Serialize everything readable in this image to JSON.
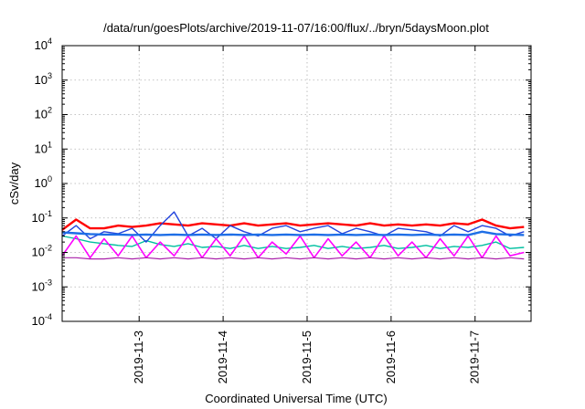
{
  "chart_data": {
    "type": "line",
    "title": "/data/run/goesPlots/archive/2019-11-07/16:00/flux/../bryn/5daysMoon.plot",
    "xlabel": "Coordinated Universal Time (UTC)",
    "ylabel": "cSv/day",
    "yscale": "log",
    "ylim": [
      0.0001,
      10000
    ],
    "xlim": [
      "2019-11-02T02:00",
      "2019-11-07T16:00"
    ],
    "grid": true,
    "x_ticks": [
      {
        "value": "2019-11-03",
        "label": "2019-11-3"
      },
      {
        "value": "2019-11-04",
        "label": "2019-11-4"
      },
      {
        "value": "2019-11-05",
        "label": "2019-11-5"
      },
      {
        "value": "2019-11-06",
        "label": "2019-11-6"
      },
      {
        "value": "2019-11-07",
        "label": "2019-11-7"
      }
    ],
    "y_ticks": [
      {
        "value": 0.0001,
        "base": "10",
        "exp": "-4"
      },
      {
        "value": 0.001,
        "base": "10",
        "exp": "-3"
      },
      {
        "value": 0.01,
        "base": "10",
        "exp": "-2"
      },
      {
        "value": 0.1,
        "base": "10",
        "exp": "-1"
      },
      {
        "value": 1,
        "base": "10",
        "exp": "0"
      },
      {
        "value": 10,
        "base": "10",
        "exp": "1"
      },
      {
        "value": 100,
        "base": "10",
        "exp": "2"
      },
      {
        "value": 1000,
        "base": "10",
        "exp": "3"
      },
      {
        "value": 10000,
        "base": "10",
        "exp": "4"
      }
    ],
    "x": [
      "2019-11-02T02:00",
      "2019-11-02T06:00",
      "2019-11-02T10:00",
      "2019-11-02T14:00",
      "2019-11-02T18:00",
      "2019-11-02T22:00",
      "2019-11-03T02:00",
      "2019-11-03T06:00",
      "2019-11-03T10:00",
      "2019-11-03T14:00",
      "2019-11-03T18:00",
      "2019-11-03T22:00",
      "2019-11-04T02:00",
      "2019-11-04T06:00",
      "2019-11-04T10:00",
      "2019-11-04T14:00",
      "2019-11-04T18:00",
      "2019-11-04T22:00",
      "2019-11-05T02:00",
      "2019-11-05T06:00",
      "2019-11-05T10:00",
      "2019-11-05T14:00",
      "2019-11-05T18:00",
      "2019-11-05T22:00",
      "2019-11-06T02:00",
      "2019-11-06T06:00",
      "2019-11-06T10:00",
      "2019-11-06T14:00",
      "2019-11-06T18:00",
      "2019-11-06T22:00",
      "2019-11-07T02:00",
      "2019-11-07T06:00",
      "2019-11-07T10:00",
      "2019-11-07T14:00"
    ],
    "series": [
      {
        "color": "#ff0000",
        "width": 2.4,
        "values": [
          0.045,
          0.09,
          0.05,
          0.05,
          0.06,
          0.055,
          0.06,
          0.07,
          0.065,
          0.06,
          0.07,
          0.065,
          0.06,
          0.07,
          0.06,
          0.065,
          0.07,
          0.06,
          0.065,
          0.07,
          0.065,
          0.06,
          0.07,
          0.06,
          0.065,
          0.06,
          0.065,
          0.06,
          0.07,
          0.065,
          0.09,
          0.06,
          0.05,
          0.055
        ]
      },
      {
        "color": "#00c0a0",
        "width": 1.4,
        "values": [
          0.03,
          0.025,
          0.02,
          0.018,
          0.016,
          0.015,
          0.022,
          0.017,
          0.015,
          0.018,
          0.014,
          0.015,
          0.013,
          0.016,
          0.013,
          0.015,
          0.013,
          0.014,
          0.016,
          0.013,
          0.015,
          0.013,
          0.014,
          0.016,
          0.013,
          0.014,
          0.016,
          0.013,
          0.015,
          0.014,
          0.016,
          0.02,
          0.013,
          0.014
        ]
      },
      {
        "color": "#2244dd",
        "width": 1.4,
        "values": [
          0.03,
          0.06,
          0.025,
          0.04,
          0.035,
          0.05,
          0.02,
          0.06,
          0.15,
          0.03,
          0.05,
          0.025,
          0.06,
          0.04,
          0.03,
          0.05,
          0.06,
          0.04,
          0.05,
          0.06,
          0.035,
          0.05,
          0.04,
          0.03,
          0.05,
          0.045,
          0.04,
          0.03,
          0.06,
          0.04,
          0.06,
          0.05,
          0.03,
          0.04
        ]
      },
      {
        "color": "#ff00ff",
        "width": 1.6,
        "values": [
          0.008,
          0.03,
          0.007,
          0.025,
          0.008,
          0.03,
          0.007,
          0.02,
          0.008,
          0.03,
          0.007,
          0.025,
          0.008,
          0.03,
          0.007,
          0.02,
          0.009,
          0.03,
          0.007,
          0.025,
          0.008,
          0.02,
          0.007,
          0.03,
          0.008,
          0.02,
          0.007,
          0.025,
          0.008,
          0.03,
          0.007,
          0.03,
          0.008,
          0.01
        ]
      },
      {
        "color": "#1e6ee6",
        "width": 2.4,
        "values": [
          0.038,
          0.036,
          0.034,
          0.033,
          0.033,
          0.032,
          0.033,
          0.032,
          0.033,
          0.032,
          0.033,
          0.032,
          0.033,
          0.032,
          0.033,
          0.032,
          0.033,
          0.032,
          0.033,
          0.032,
          0.033,
          0.032,
          0.033,
          0.032,
          0.033,
          0.032,
          0.033,
          0.032,
          0.033,
          0.032,
          0.04,
          0.034,
          0.033,
          0.032
        ]
      },
      {
        "color": "#aa22aa",
        "width": 1.2,
        "values": [
          0.007,
          0.007,
          0.0065,
          0.0065,
          0.007,
          0.0065,
          0.007,
          0.0065,
          0.007,
          0.0065,
          0.007,
          0.0065,
          0.007,
          0.0065,
          0.007,
          0.0065,
          0.007,
          0.0065,
          0.007,
          0.0065,
          0.007,
          0.0065,
          0.007,
          0.0065,
          0.007,
          0.0065,
          0.007,
          0.0065,
          0.007,
          0.0065,
          0.007,
          0.0065,
          0.007,
          0.0065
        ]
      }
    ]
  }
}
